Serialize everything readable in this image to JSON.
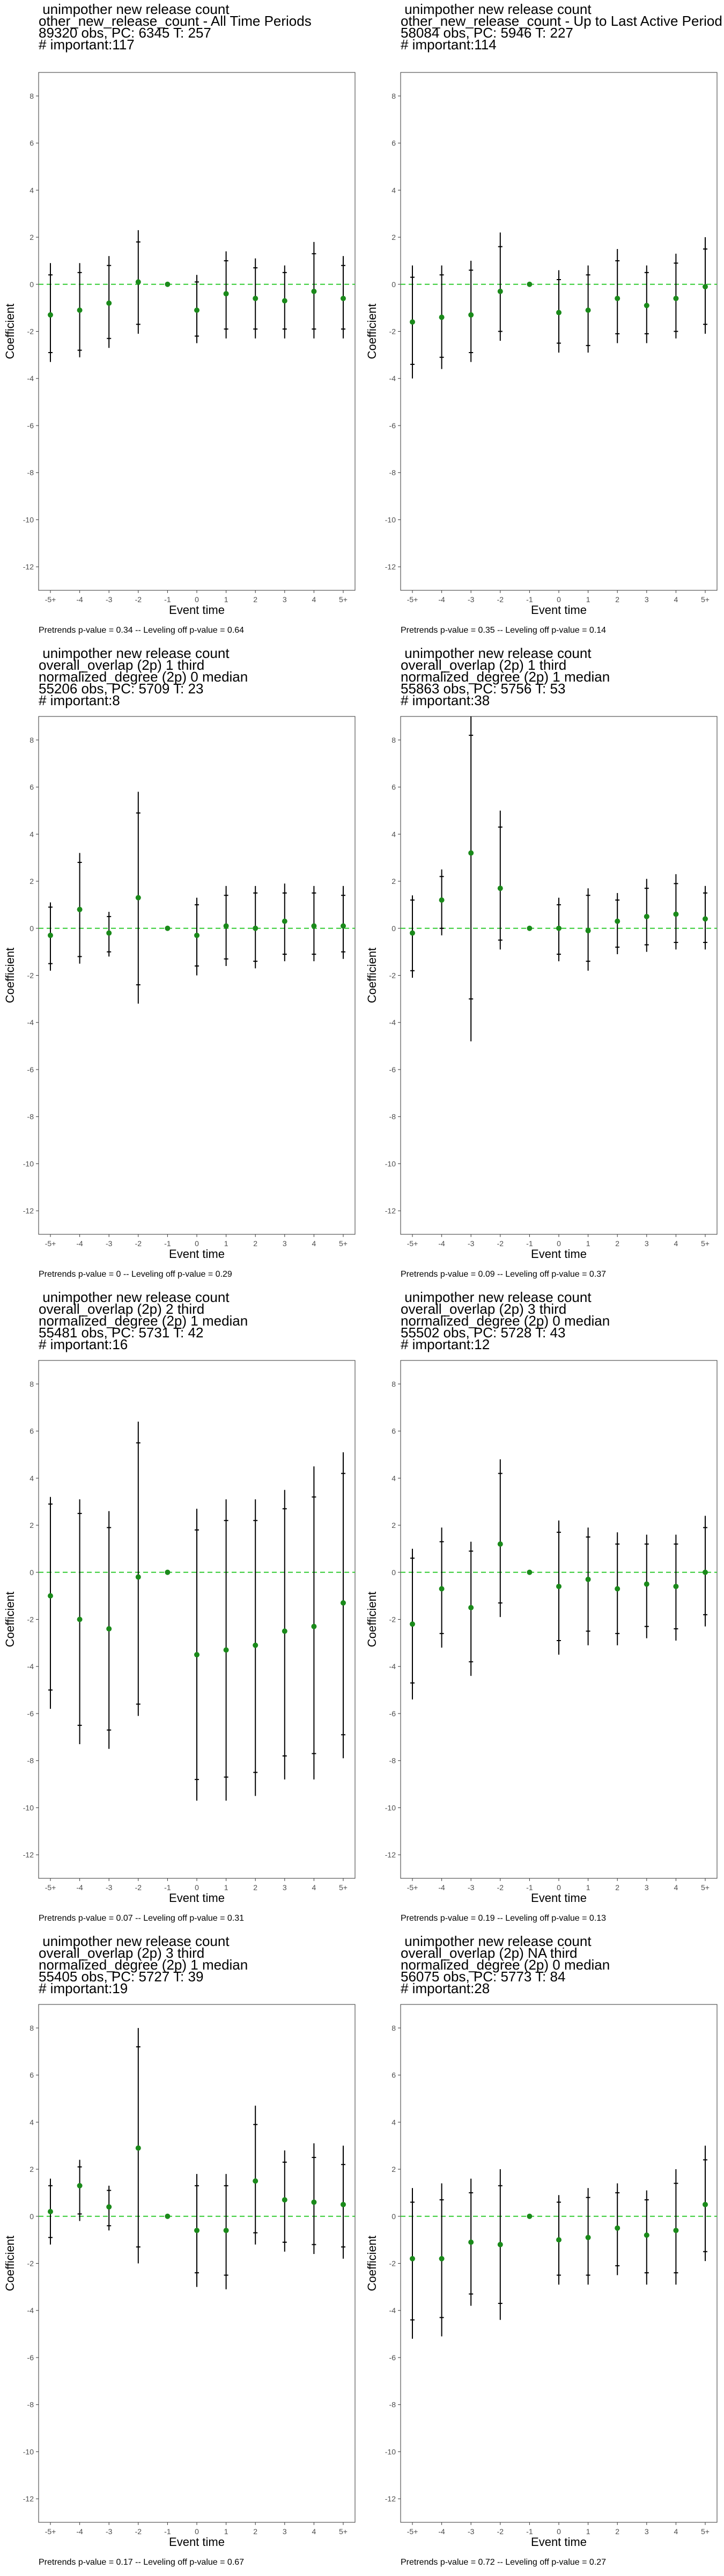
{
  "chart_data": [
    {
      "type": "scatter",
      "title": [
        " unimpother new release count",
        "other_new_release_count - All Time Periods",
        "89320 obs, PC: 6345 T: 257",
        "# important:117"
      ],
      "xlabel": "Event time",
      "ylabel": "Coefficient",
      "ylim": [
        -13,
        9
      ],
      "yticks": [
        -12,
        -10,
        -8,
        -6,
        -4,
        -2,
        0,
        2,
        4,
        6,
        8
      ],
      "categories": [
        "-5+",
        "-4",
        "-3",
        "-2",
        "-1",
        "0",
        "1",
        "2",
        "3",
        "4",
        "5+"
      ],
      "values": [
        -1.3,
        -1.1,
        -0.8,
        0.1,
        0.0,
        -1.1,
        -0.4,
        -0.6,
        -0.7,
        -0.3,
        -0.6
      ],
      "ci_outer": [
        [
          -3.3,
          0.9
        ],
        [
          -3.1,
          0.9
        ],
        [
          -2.7,
          1.2
        ],
        [
          -2.1,
          2.3
        ],
        [
          0,
          0
        ],
        [
          -2.5,
          0.4
        ],
        [
          -2.3,
          1.4
        ],
        [
          -2.3,
          1.1
        ],
        [
          -2.3,
          0.8
        ],
        [
          -2.3,
          1.8
        ],
        [
          -2.3,
          1.2
        ]
      ],
      "ci_inner": [
        [
          -2.9,
          0.4
        ],
        [
          -2.8,
          0.5
        ],
        [
          -2.3,
          0.8
        ],
        [
          -1.7,
          1.8
        ],
        [
          0,
          0
        ],
        [
          -2.2,
          0.1
        ],
        [
          -1.9,
          1.0
        ],
        [
          -1.9,
          0.7
        ],
        [
          -1.9,
          0.5
        ],
        [
          -1.9,
          1.3
        ],
        [
          -1.9,
          0.8
        ]
      ],
      "footnote": "Pretrends p-value = 0.34 -- Leveling off p-value = 0.64"
    },
    {
      "type": "scatter",
      "title": [
        " unimpother new release count",
        "other_new_release_count - Up to Last Active Period",
        "58084 obs, PC: 5946 T: 227",
        "# important:114"
      ],
      "xlabel": "Event time",
      "ylabel": "Coefficient",
      "ylim": [
        -13,
        9
      ],
      "yticks": [
        -12,
        -10,
        -8,
        -6,
        -4,
        -2,
        0,
        2,
        4,
        6,
        8
      ],
      "categories": [
        "-5+",
        "-4",
        "-3",
        "-2",
        "-1",
        "0",
        "1",
        "2",
        "3",
        "4",
        "5+"
      ],
      "values": [
        -1.6,
        -1.4,
        -1.3,
        -0.3,
        0.0,
        -1.2,
        -1.1,
        -0.6,
        -0.9,
        -0.6,
        -0.1
      ],
      "ci_outer": [
        [
          -4.0,
          0.8
        ],
        [
          -3.6,
          0.8
        ],
        [
          -3.3,
          1.0
        ],
        [
          -2.4,
          2.2
        ],
        [
          0,
          0
        ],
        [
          -2.9,
          0.6
        ],
        [
          -2.9,
          0.8
        ],
        [
          -2.5,
          1.5
        ],
        [
          -2.5,
          0.8
        ],
        [
          -2.3,
          1.3
        ],
        [
          -2.1,
          2.0
        ]
      ],
      "ci_inner": [
        [
          -3.4,
          0.3
        ],
        [
          -3.1,
          0.4
        ],
        [
          -2.9,
          0.6
        ],
        [
          -2.0,
          1.6
        ],
        [
          0,
          0
        ],
        [
          -2.5,
          0.2
        ],
        [
          -2.6,
          0.4
        ],
        [
          -2.1,
          1.0
        ],
        [
          -2.1,
          0.5
        ],
        [
          -2.0,
          0.9
        ],
        [
          -1.7,
          1.5
        ]
      ],
      "footnote": "Pretrends p-value = 0.35 -- Leveling off p-value = 0.14"
    },
    {
      "type": "scatter",
      "title": [
        " unimpother new release count",
        "overall_overlap (2p) 1 third",
        "normalized_degree (2p) 0 median",
        "55206 obs, PC: 5709 T: 23",
        "# important:8"
      ],
      "xlabel": "Event time",
      "ylabel": "Coefficient",
      "ylim": [
        -13,
        9
      ],
      "yticks": [
        -12,
        -10,
        -8,
        -6,
        -4,
        -2,
        0,
        2,
        4,
        6,
        8
      ],
      "categories": [
        "-5+",
        "-4",
        "-3",
        "-2",
        "-1",
        "0",
        "1",
        "2",
        "3",
        "4",
        "5+"
      ],
      "values": [
        -0.3,
        0.8,
        -0.2,
        1.3,
        0.0,
        -0.3,
        0.1,
        0.0,
        0.3,
        0.1,
        0.1
      ],
      "ci_outer": [
        [
          -1.8,
          1.1
        ],
        [
          -1.5,
          3.2
        ],
        [
          -1.2,
          0.7
        ],
        [
          -3.2,
          5.8
        ],
        [
          0,
          0
        ],
        [
          -2.0,
          1.3
        ],
        [
          -1.6,
          1.8
        ],
        [
          -1.7,
          1.8
        ],
        [
          -1.4,
          1.9
        ],
        [
          -1.4,
          1.8
        ],
        [
          -1.3,
          1.8
        ]
      ],
      "ci_inner": [
        [
          -1.5,
          0.9
        ],
        [
          -1.2,
          2.8
        ],
        [
          -1.0,
          0.5
        ],
        [
          -2.4,
          4.9
        ],
        [
          0,
          0
        ],
        [
          -1.6,
          1.0
        ],
        [
          -1.3,
          1.4
        ],
        [
          -1.4,
          1.5
        ],
        [
          -1.1,
          1.5
        ],
        [
          -1.1,
          1.5
        ],
        [
          -1.0,
          1.4
        ]
      ],
      "footnote": "Pretrends p-value = 0 -- Leveling off p-value = 0.29"
    },
    {
      "type": "scatter",
      "title": [
        " unimpother new release count",
        "overall_overlap (2p) 1 third",
        "normalized_degree (2p) 1 median",
        "55863 obs, PC: 5756 T: 53",
        "# important:38"
      ],
      "xlabel": "Event time",
      "ylabel": "Coefficient",
      "ylim": [
        -13,
        9
      ],
      "yticks": [
        -12,
        -10,
        -8,
        -6,
        -4,
        -2,
        0,
        2,
        4,
        6,
        8
      ],
      "categories": [
        "-5+",
        "-4",
        "-3",
        "-2",
        "-1",
        "0",
        "1",
        "2",
        "3",
        "4",
        "5+"
      ],
      "values": [
        -0.2,
        1.2,
        3.2,
        1.7,
        0.0,
        0.0,
        -0.1,
        0.3,
        0.5,
        0.6,
        0.4
      ],
      "ci_outer": [
        [
          -2.1,
          1.4
        ],
        [
          -0.3,
          2.5
        ],
        [
          -4.8,
          9.0
        ],
        [
          -0.9,
          5.0
        ],
        [
          0,
          0
        ],
        [
          -1.4,
          1.3
        ],
        [
          -1.8,
          1.7
        ],
        [
          -1.1,
          1.5
        ],
        [
          -1.0,
          2.1
        ],
        [
          -0.9,
          2.3
        ],
        [
          -0.9,
          1.8
        ]
      ],
      "ci_inner": [
        [
          -1.8,
          1.2
        ],
        [
          0.0,
          2.2
        ],
        [
          -3.0,
          8.2
        ],
        [
          -0.5,
          4.3
        ],
        [
          0,
          0
        ],
        [
          -1.1,
          1.0
        ],
        [
          -1.4,
          1.4
        ],
        [
          -0.8,
          1.2
        ],
        [
          -0.7,
          1.7
        ],
        [
          -0.6,
          1.9
        ],
        [
          -0.6,
          1.5
        ]
      ],
      "footnote": "Pretrends p-value = 0.09 -- Leveling off p-value = 0.37"
    },
    {
      "type": "scatter",
      "title": [
        " unimpother new release count",
        "overall_overlap (2p) 2 third",
        "normalized_degree (2p) 1 median",
        "55481 obs, PC: 5731 T: 42",
        "# important:16"
      ],
      "xlabel": "Event time",
      "ylabel": "Coefficient",
      "ylim": [
        -13,
        9
      ],
      "yticks": [
        -12,
        -10,
        -8,
        -6,
        -4,
        -2,
        0,
        2,
        4,
        6,
        8
      ],
      "categories": [
        "-5+",
        "-4",
        "-3",
        "-2",
        "-1",
        "0",
        "1",
        "2",
        "3",
        "4",
        "5+"
      ],
      "values": [
        -1.0,
        -2.0,
        -2.4,
        -0.2,
        0.0,
        -3.5,
        -3.3,
        -3.1,
        -2.5,
        -2.3,
        -1.3
      ],
      "ci_outer": [
        [
          -5.8,
          3.2
        ],
        [
          -7.3,
          3.1
        ],
        [
          -7.5,
          2.6
        ],
        [
          -6.1,
          6.4
        ],
        [
          0,
          0
        ],
        [
          -9.7,
          2.7
        ],
        [
          -9.7,
          3.1
        ],
        [
          -9.5,
          3.1
        ],
        [
          -8.8,
          3.5
        ],
        [
          -8.8,
          4.5
        ],
        [
          -7.9,
          5.1
        ]
      ],
      "ci_inner": [
        [
          -5.0,
          2.9
        ],
        [
          -6.5,
          2.5
        ],
        [
          -6.7,
          1.9
        ],
        [
          -5.6,
          5.5
        ],
        [
          0,
          0
        ],
        [
          -8.8,
          1.8
        ],
        [
          -8.7,
          2.2
        ],
        [
          -8.5,
          2.2
        ],
        [
          -7.8,
          2.7
        ],
        [
          -7.7,
          3.2
        ],
        [
          -6.9,
          4.2
        ]
      ],
      "footnote": "Pretrends p-value = 0.07 -- Leveling off p-value = 0.31"
    },
    {
      "type": "scatter",
      "title": [
        " unimpother new release count",
        "overall_overlap (2p) 3 third",
        "normalized_degree (2p) 0 median",
        "55502 obs, PC: 5728 T: 43",
        "# important:12"
      ],
      "xlabel": "Event time",
      "ylabel": "Coefficient",
      "ylim": [
        -13,
        9
      ],
      "yticks": [
        -12,
        -10,
        -8,
        -6,
        -4,
        -2,
        0,
        2,
        4,
        6,
        8
      ],
      "categories": [
        "-5+",
        "-4",
        "-3",
        "-2",
        "-1",
        "0",
        "1",
        "2",
        "3",
        "4",
        "5+"
      ],
      "values": [
        -2.2,
        -0.7,
        -1.5,
        1.2,
        0.0,
        -0.6,
        -0.3,
        -0.7,
        -0.5,
        -0.6,
        0.0
      ],
      "ci_outer": [
        [
          -5.4,
          1.0
        ],
        [
          -3.2,
          1.9
        ],
        [
          -4.4,
          1.3
        ],
        [
          -1.9,
          4.8
        ],
        [
          0,
          0
        ],
        [
          -3.5,
          2.2
        ],
        [
          -3.1,
          1.9
        ],
        [
          -3.1,
          1.7
        ],
        [
          -2.8,
          1.6
        ],
        [
          -2.9,
          1.6
        ],
        [
          -2.3,
          2.4
        ]
      ],
      "ci_inner": [
        [
          -4.7,
          0.6
        ],
        [
          -2.6,
          1.3
        ],
        [
          -3.8,
          0.9
        ],
        [
          -1.3,
          4.2
        ],
        [
          0,
          0
        ],
        [
          -2.9,
          1.7
        ],
        [
          -2.5,
          1.5
        ],
        [
          -2.6,
          1.2
        ],
        [
          -2.3,
          1.2
        ],
        [
          -2.4,
          1.2
        ],
        [
          -1.8,
          1.9
        ]
      ],
      "footnote": "Pretrends p-value = 0.19 -- Leveling off p-value = 0.13"
    },
    {
      "type": "scatter",
      "title": [
        " unimpother new release count",
        "overall_overlap (2p) 3 third",
        "normalized_degree (2p) 1 median",
        "55405 obs, PC: 5727 T: 39",
        "# important:19"
      ],
      "xlabel": "Event time",
      "ylabel": "Coefficient",
      "ylim": [
        -13,
        9
      ],
      "yticks": [
        -12,
        -10,
        -8,
        -6,
        -4,
        -2,
        0,
        2,
        4,
        6,
        8
      ],
      "categories": [
        "-5+",
        "-4",
        "-3",
        "-2",
        "-1",
        "0",
        "1",
        "2",
        "3",
        "4",
        "5+"
      ],
      "values": [
        0.2,
        1.3,
        0.4,
        2.9,
        0.0,
        -0.6,
        -0.6,
        1.5,
        0.7,
        0.6,
        0.5
      ],
      "ci_outer": [
        [
          -1.2,
          1.6
        ],
        [
          -0.2,
          2.4
        ],
        [
          -0.6,
          1.3
        ],
        [
          -2.0,
          8.0
        ],
        [
          0,
          0
        ],
        [
          -3.0,
          1.8
        ],
        [
          -3.1,
          1.8
        ],
        [
          -1.2,
          4.7
        ],
        [
          -1.5,
          2.8
        ],
        [
          -1.6,
          3.1
        ],
        [
          -1.8,
          3.0
        ]
      ],
      "ci_inner": [
        [
          -0.9,
          1.3
        ],
        [
          0.1,
          2.1
        ],
        [
          -0.4,
          1.1
        ],
        [
          -1.3,
          7.2
        ],
        [
          0,
          0
        ],
        [
          -2.4,
          1.3
        ],
        [
          -2.5,
          1.3
        ],
        [
          -0.7,
          3.9
        ],
        [
          -1.1,
          2.3
        ],
        [
          -1.2,
          2.5
        ],
        [
          -1.3,
          2.2
        ]
      ],
      "footnote": "Pretrends p-value = 0.17 -- Leveling off p-value = 0.67"
    },
    {
      "type": "scatter",
      "title": [
        " unimpother new release count",
        "overall_overlap (2p) NA third",
        "normalized_degree (2p) 0 median",
        "56075 obs, PC: 5773 T: 84",
        "# important:28"
      ],
      "xlabel": "Event time",
      "ylabel": "Coefficient",
      "ylim": [
        -13,
        9
      ],
      "yticks": [
        -12,
        -10,
        -8,
        -6,
        -4,
        -2,
        0,
        2,
        4,
        6,
        8
      ],
      "categories": [
        "-5+",
        "-4",
        "-3",
        "-2",
        "-1",
        "0",
        "1",
        "2",
        "3",
        "4",
        "5+"
      ],
      "values": [
        -1.8,
        -1.8,
        -1.1,
        -1.2,
        0.0,
        -1.0,
        -0.9,
        -0.5,
        -0.8,
        -0.6,
        0.5
      ],
      "ci_outer": [
        [
          -5.2,
          1.2
        ],
        [
          -5.1,
          1.4
        ],
        [
          -3.8,
          1.6
        ],
        [
          -4.4,
          2.0
        ],
        [
          0,
          0
        ],
        [
          -2.9,
          0.9
        ],
        [
          -2.9,
          1.2
        ],
        [
          -2.5,
          1.4
        ],
        [
          -2.9,
          1.1
        ],
        [
          -2.9,
          2.0
        ],
        [
          -1.9,
          3.0
        ]
      ],
      "ci_inner": [
        [
          -4.4,
          0.6
        ],
        [
          -4.3,
          0.7
        ],
        [
          -3.3,
          1.0
        ],
        [
          -3.7,
          1.3
        ],
        [
          0,
          0
        ],
        [
          -2.5,
          0.6
        ],
        [
          -2.5,
          0.8
        ],
        [
          -2.1,
          1.0
        ],
        [
          -2.4,
          0.7
        ],
        [
          -2.4,
          1.4
        ],
        [
          -1.5,
          2.4
        ]
      ],
      "footnote": "Pretrends p-value = 0.72 -- Leveling off p-value = 0.27"
    }
  ],
  "colors": {
    "point": "#1a8a1a",
    "zero_line": "#33cc33",
    "whisker": "#000000",
    "panel_border": "#333333"
  }
}
